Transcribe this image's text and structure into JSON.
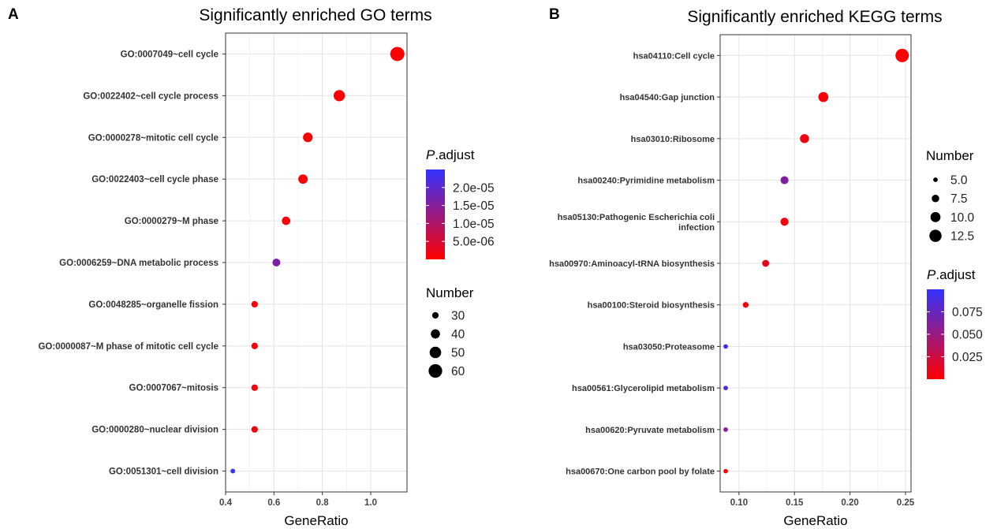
{
  "chart_data": [
    {
      "panel_letter": "A",
      "type": "scatter",
      "title": "Significantly enriched GO terms",
      "xlabel": "GeneRatio",
      "ylabel": "",
      "xlim": [
        0.4,
        1.15
      ],
      "xticks": [
        0.4,
        0.6,
        0.8,
        1.0
      ],
      "xtick_labels": [
        "0.4",
        "0.6",
        "0.8",
        "1.0"
      ],
      "grid": true,
      "categories": [
        "GO:0007049~cell cycle",
        "GO:0022402~cell cycle process",
        "GO:0000278~mitotic cell cycle",
        "GO:0022403~cell cycle phase",
        "GO:0000279~M phase",
        "GO:0006259~DNA metabolic process",
        "GO:0048285~organelle fission",
        "GO:0000087~M phase of mitotic cell cycle",
        "GO:0007067~mitosis",
        "GO:0000280~nuclear division",
        "GO:0051301~cell division"
      ],
      "gene_ratio": [
        1.11,
        0.87,
        0.74,
        0.72,
        0.65,
        0.61,
        0.52,
        0.52,
        0.52,
        0.52,
        0.43
      ],
      "number": [
        63,
        49,
        42,
        41,
        37,
        35,
        30,
        30,
        30,
        30,
        24
      ],
      "p_adjust": [
        1e-07,
        3e-07,
        5e-07,
        6e-07,
        8e-07,
        1.6e-05,
        1e-06,
        1e-06,
        1e-06,
        1e-06,
        2.4e-05
      ],
      "color_legend": {
        "title_italic": "P",
        "title_rest": ".adjust",
        "domain": [
          0,
          2.5e-05
        ],
        "ticks": [
          2e-05,
          1.5e-05,
          1e-05,
          5e-06
        ],
        "tick_labels": [
          "2.0e-05",
          "1.5e-05",
          "1.0e-05",
          "5.0e-06"
        ]
      },
      "size_legend": {
        "title": "Number",
        "domain": [
          24,
          63
        ],
        "values": [
          30,
          40,
          50,
          60
        ],
        "labels": [
          "30",
          "40",
          "50",
          "60"
        ]
      },
      "legend_order": "color-first",
      "colors": {
        "low": "#ff0000",
        "high": "#3333ff"
      }
    },
    {
      "panel_letter": "B",
      "type": "scatter",
      "title": "Significantly enriched KEGG terms",
      "xlabel": "GeneRatio",
      "ylabel": "",
      "xlim": [
        0.083,
        0.255
      ],
      "xticks": [
        0.1,
        0.15,
        0.2,
        0.25
      ],
      "xtick_labels": [
        "0.10",
        "0.15",
        "0.20",
        "0.25"
      ],
      "grid": true,
      "categories": [
        "hsa04110:Cell cycle",
        "hsa04540:Gap junction",
        "hsa03010:Ribosome",
        "hsa00240:Pyrimidine metabolism",
        "hsa05130:Pathogenic Escherichia coli\ninfection",
        "hsa00970:Aminoacyl-tRNA biosynthesis",
        "hsa00100:Steroid biosynthesis",
        "hsa03050:Proteasome",
        "hsa00561:Glycerolipid metabolism",
        "hsa00620:Pyruvate metabolism",
        "hsa00670:One carbon pool by folate"
      ],
      "gene_ratio": [
        0.247,
        0.176,
        0.159,
        0.141,
        0.141,
        0.124,
        0.106,
        0.088,
        0.088,
        0.088,
        0.088
      ],
      "number": [
        14,
        10,
        9,
        8,
        8,
        7,
        6,
        5,
        5,
        5,
        5
      ],
      "p_adjust": [
        0.0005,
        0.004,
        0.008,
        0.062,
        0.004,
        0.012,
        0.004,
        0.095,
        0.085,
        0.06,
        0.005
      ],
      "color_legend": {
        "title_italic": "P",
        "title_rest": ".adjust",
        "domain": [
          0,
          0.1
        ],
        "ticks": [
          0.075,
          0.05,
          0.025
        ],
        "tick_labels": [
          "0.075",
          "0.050",
          "0.025"
        ]
      },
      "size_legend": {
        "title": "Number",
        "domain": [
          4,
          14
        ],
        "values": [
          5.0,
          7.5,
          10.0,
          12.5
        ],
        "labels": [
          "5.0",
          "7.5",
          "10.0",
          "12.5"
        ]
      },
      "legend_order": "size-first",
      "colors": {
        "low": "#ff0000",
        "high": "#3333ff"
      }
    }
  ]
}
